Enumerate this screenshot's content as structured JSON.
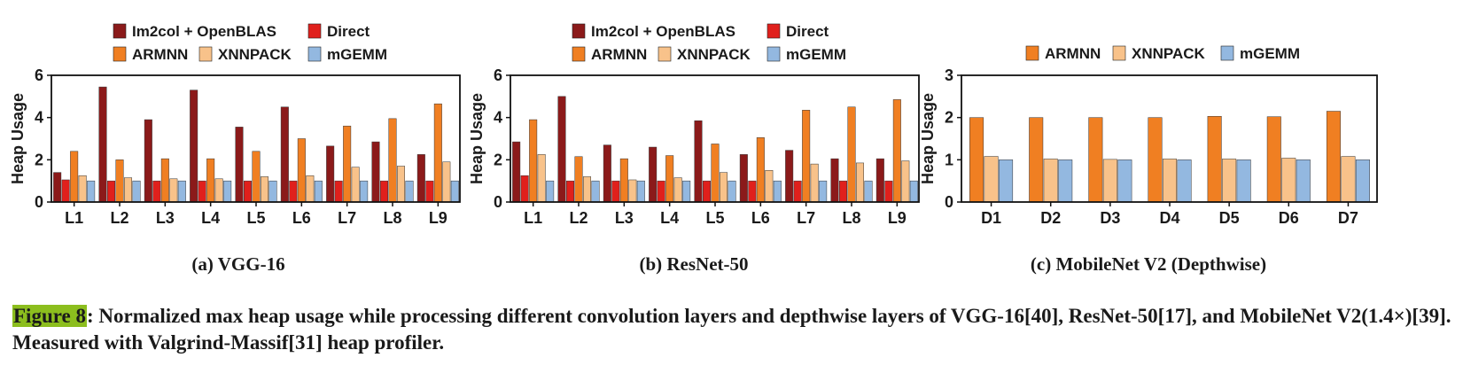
{
  "colors": {
    "Im2col + OpenBLAS": "#8b1a1a",
    "Direct": "#e0201c",
    "ARMNN": "#f07f22",
    "XNNPACK": "#f8c28a",
    "mGEMM": "#93b8e0"
  },
  "chart_data": [
    {
      "type": "bar",
      "subtitle": "(a) VGG-16",
      "ylabel": "Heap Usage",
      "ylim": [
        0,
        6
      ],
      "yticks": [
        0,
        2,
        4,
        6
      ],
      "grid": false,
      "legend": "top",
      "categories": [
        "L1",
        "L2",
        "L3",
        "L4",
        "L5",
        "L6",
        "L7",
        "L8",
        "L9"
      ],
      "series": [
        {
          "name": "Im2col + OpenBLAS",
          "values": [
            1.4,
            5.45,
            3.9,
            5.3,
            3.55,
            4.5,
            2.65,
            2.85,
            2.25
          ]
        },
        {
          "name": "Direct",
          "values": [
            1.05,
            1.0,
            1.0,
            1.0,
            1.0,
            1.0,
            1.0,
            1.0,
            1.0
          ]
        },
        {
          "name": "ARMNN",
          "values": [
            2.4,
            2.0,
            2.05,
            2.05,
            2.4,
            3.0,
            3.6,
            3.95,
            4.65
          ]
        },
        {
          "name": "XNNPACK",
          "values": [
            1.25,
            1.15,
            1.1,
            1.1,
            1.2,
            1.25,
            1.65,
            1.7,
            1.9
          ]
        },
        {
          "name": "mGEMM",
          "values": [
            1.0,
            1.0,
            1.0,
            1.0,
            1.0,
            1.0,
            1.0,
            1.0,
            1.0
          ]
        }
      ]
    },
    {
      "type": "bar",
      "subtitle": "(b) ResNet-50",
      "ylabel": "Heap Usage",
      "ylim": [
        0,
        6
      ],
      "yticks": [
        0,
        2,
        4,
        6
      ],
      "grid": false,
      "legend": "top",
      "categories": [
        "L1",
        "L2",
        "L3",
        "L4",
        "L5",
        "L6",
        "L7",
        "L8",
        "L9"
      ],
      "series": [
        {
          "name": "Im2col + OpenBLAS",
          "values": [
            2.85,
            5.0,
            2.7,
            2.6,
            3.85,
            2.25,
            2.45,
            2.05,
            2.05
          ]
        },
        {
          "name": "Direct",
          "values": [
            1.25,
            1.0,
            1.0,
            1.0,
            1.0,
            1.0,
            1.0,
            1.0,
            1.0
          ]
        },
        {
          "name": "ARMNN",
          "values": [
            3.9,
            2.15,
            2.05,
            2.2,
            2.75,
            3.05,
            4.35,
            4.5,
            4.85
          ]
        },
        {
          "name": "XNNPACK",
          "values": [
            2.25,
            1.2,
            1.05,
            1.15,
            1.4,
            1.5,
            1.8,
            1.85,
            1.95
          ]
        },
        {
          "name": "mGEMM",
          "values": [
            1.0,
            1.0,
            1.0,
            1.0,
            1.0,
            1.0,
            1.0,
            1.0,
            1.0
          ]
        }
      ]
    },
    {
      "type": "bar",
      "subtitle": "(c) MobileNet V2 (Depthwise)",
      "ylabel": "Heap Usage",
      "ylim": [
        0,
        3
      ],
      "yticks": [
        0,
        1,
        2,
        3
      ],
      "grid": false,
      "legend": "top",
      "categories": [
        "D1",
        "D2",
        "D3",
        "D4",
        "D5",
        "D6",
        "D7"
      ],
      "series": [
        {
          "name": "ARMNN",
          "values": [
            2.0,
            2.0,
            2.0,
            2.0,
            2.03,
            2.02,
            2.15
          ]
        },
        {
          "name": "XNNPACK",
          "values": [
            1.08,
            1.02,
            1.01,
            1.02,
            1.02,
            1.04,
            1.08
          ]
        },
        {
          "name": "mGEMM",
          "values": [
            1.0,
            1.0,
            1.0,
            1.0,
            1.0,
            1.0,
            1.0
          ]
        }
      ]
    }
  ],
  "caption": {
    "label": "Figure 8",
    "text": ": Normalized max heap usage while processing different convolution layers and depthwise layers of VGG-16[40], ResNet-50[17], and MobileNet V2(1.4×)[39]. Measured with Valgrind-Massif[31] heap profiler."
  }
}
